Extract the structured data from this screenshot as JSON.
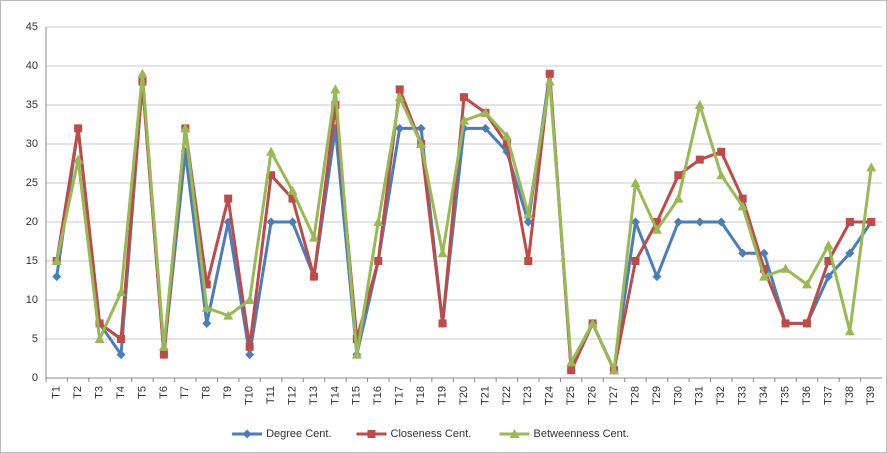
{
  "chart_data": {
    "type": "line",
    "categories": [
      "T1",
      "T2",
      "T3",
      "T4",
      "T5",
      "T6",
      "T7",
      "T8",
      "T9",
      "T10",
      "T11",
      "T12",
      "T13",
      "T14",
      "T15",
      "T16",
      "T17",
      "T18",
      "T19",
      "T20",
      "T21",
      "T22",
      "T23",
      "T24",
      "T25",
      "T26",
      "T27",
      "T28",
      "T29",
      "T30",
      "T31",
      "T32",
      "T33",
      "T34",
      "T35",
      "T36",
      "T37",
      "T38",
      "T39"
    ],
    "series": [
      {
        "name": "Degree Cent.",
        "color": "#4a7ebb",
        "marker": "diamond",
        "values": [
          13,
          32,
          7,
          3,
          38,
          3,
          29,
          7,
          20,
          3,
          20,
          20,
          13,
          32,
          3,
          15,
          32,
          32,
          7,
          32,
          32,
          29,
          20,
          39,
          1,
          7,
          1,
          20,
          13,
          20,
          20,
          20,
          16,
          16,
          7,
          7,
          13,
          16,
          20
        ]
      },
      {
        "name": "Closeness Cent.",
        "color": "#be4b48",
        "marker": "square",
        "values": [
          15,
          32,
          7,
          5,
          38,
          3,
          32,
          12,
          23,
          4,
          26,
          23,
          13,
          35,
          5,
          15,
          37,
          30,
          7,
          36,
          34,
          30,
          15,
          39,
          1,
          7,
          1,
          15,
          20,
          26,
          28,
          29,
          23,
          14,
          7,
          7,
          15,
          20,
          20
        ]
      },
      {
        "name": "Betweenness Cent.",
        "color": "#98b954",
        "marker": "triangle",
        "values": [
          15,
          28,
          5,
          11,
          39,
          4,
          32,
          9,
          8,
          10,
          29,
          24,
          18,
          37,
          3,
          20,
          36,
          30,
          16,
          33,
          34,
          31,
          21,
          38,
          2,
          7,
          1,
          25,
          19,
          23,
          35,
          26,
          22,
          13,
          14,
          12,
          17,
          6,
          27
        ]
      }
    ],
    "ylim": [
      0,
      45
    ],
    "yticks": [
      0,
      5,
      10,
      15,
      20,
      25,
      30,
      35,
      40,
      45
    ],
    "grid": true,
    "legend": "bottom"
  }
}
